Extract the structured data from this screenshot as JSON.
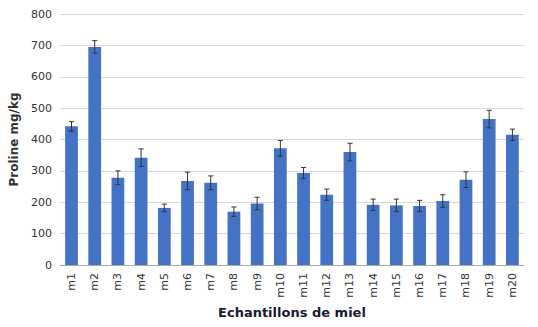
{
  "chart_data": {
    "type": "bar",
    "xlabel": "Echantillons de miel",
    "ylabel": "Proline mg/kg",
    "categories": [
      "m1",
      "m2",
      "m3",
      "m4",
      "m5",
      "m6",
      "m7",
      "m8",
      "m9",
      "m10",
      "m11",
      "m12",
      "m13",
      "m14",
      "m15",
      "m16",
      "m17",
      "m18",
      "m19",
      "m20"
    ],
    "values": [
      442,
      695,
      278,
      342,
      182,
      268,
      262,
      170,
      196,
      372,
      293,
      224,
      360,
      192,
      190,
      188,
      204,
      272,
      465,
      415
    ],
    "errors": [
      15,
      20,
      22,
      28,
      12,
      28,
      22,
      15,
      20,
      25,
      18,
      18,
      28,
      18,
      20,
      18,
      20,
      25,
      28,
      18
    ],
    "color": "#4472C4",
    "ylim": [
      0,
      800
    ],
    "yticks": [
      0,
      100,
      200,
      300,
      400,
      500,
      600,
      700,
      800
    ],
    "grid": true
  }
}
